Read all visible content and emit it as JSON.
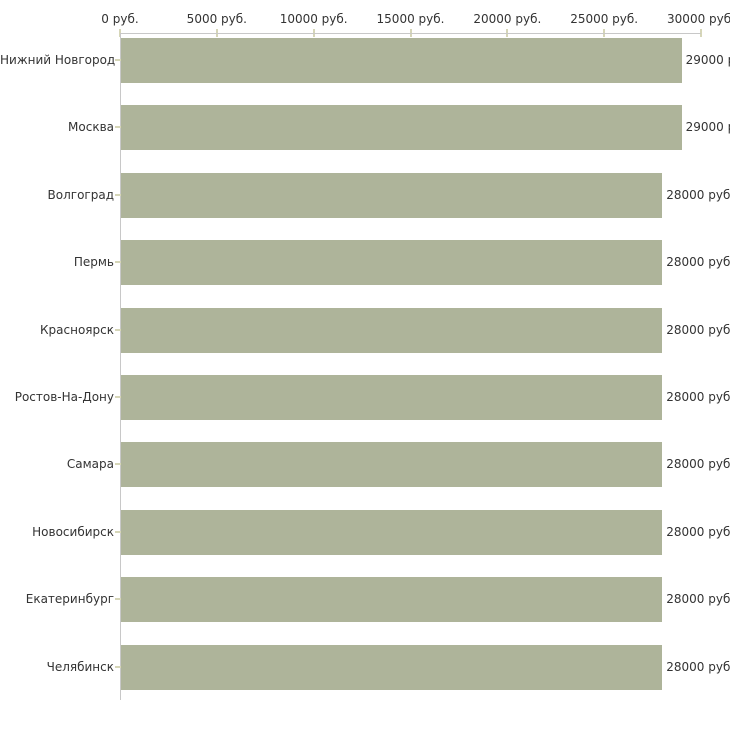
{
  "chart_data": {
    "type": "bar",
    "orientation": "horizontal",
    "title": "",
    "xlabel": "",
    "ylabel": "",
    "xlim": [
      0,
      30000
    ],
    "x_unit": "руб.",
    "grid": false,
    "legend": false,
    "background_color": "#ffffff",
    "bar_color": "#aeb49a",
    "axis_line_color": "#c8c8c8",
    "tick_color": "#d6d6b8",
    "text_color": "#333333",
    "x_ticks": [
      {
        "value": 0,
        "label": "0 руб."
      },
      {
        "value": 5000,
        "label": "5000 руб."
      },
      {
        "value": 10000,
        "label": "10000 руб."
      },
      {
        "value": 15000,
        "label": "15000 руб."
      },
      {
        "value": 20000,
        "label": "20000 руб."
      },
      {
        "value": 25000,
        "label": "25000 руб."
      },
      {
        "value": 30000,
        "label": "30000 руб."
      }
    ],
    "categories": [
      "Нижний Новгород",
      "Москва",
      "Волгоград",
      "Пермь",
      "Красноярск",
      "Ростов-На-Дону",
      "Самара",
      "Новосибирск",
      "Екатеринбург",
      "Челябинск"
    ],
    "values": [
      29000,
      29000,
      28000,
      28000,
      28000,
      28000,
      28000,
      28000,
      28000,
      28000
    ],
    "value_labels": [
      "29000 р",
      "29000 р",
      "28000 руб.",
      "28000 руб.",
      "28000 руб.",
      "28000 руб.",
      "28000 руб.",
      "28000 руб.",
      "28000 руб.",
      "28000 руб."
    ]
  }
}
